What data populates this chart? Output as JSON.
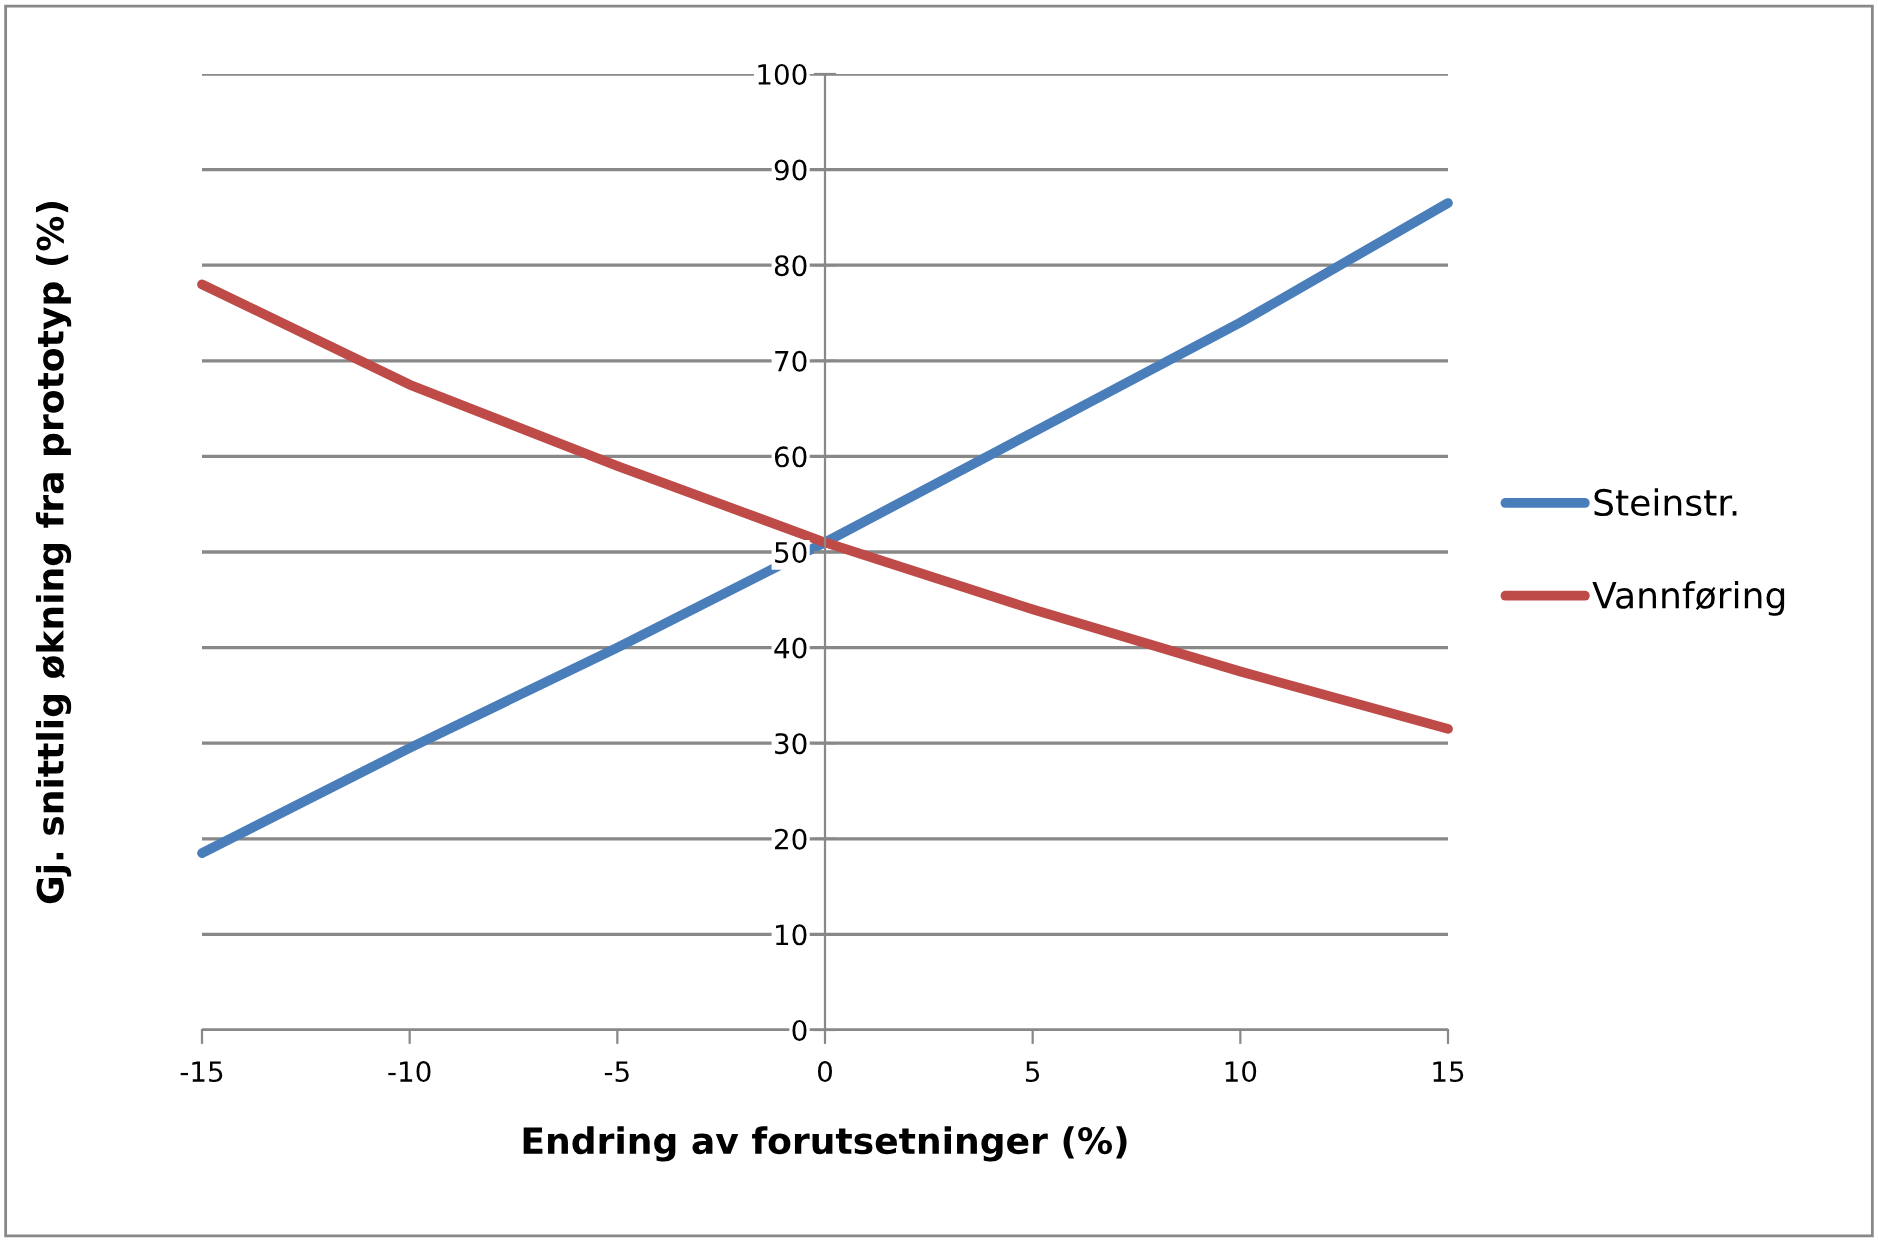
{
  "chart_data": {
    "type": "line",
    "xlabel": "Endring av forutsetninger (%)",
    "ylabel": "Gj. snittlig økning fra prototyp (%)",
    "x": [
      -15,
      -10,
      -5,
      0,
      5,
      10,
      15
    ],
    "series": [
      {
        "name": "Steinstr.",
        "color": "#4a7ebb",
        "values": [
          18.5,
          29.5,
          40,
          51,
          62.5,
          74,
          86.5
        ]
      },
      {
        "name": "Vannføring",
        "color": "#be4b48",
        "values": [
          78,
          67.5,
          59,
          51,
          44,
          37.5,
          31.5
        ]
      }
    ],
    "xlim": [
      -15,
      15
    ],
    "xticks": [
      -15,
      -10,
      -5,
      0,
      5,
      10,
      15
    ],
    "ylim": [
      0,
      100
    ],
    "yticks": [
      0,
      10,
      20,
      30,
      40,
      50,
      60,
      70,
      80,
      90,
      100
    ],
    "grid": "y",
    "legend": "right",
    "marker": "none",
    "line_style": "solid"
  }
}
